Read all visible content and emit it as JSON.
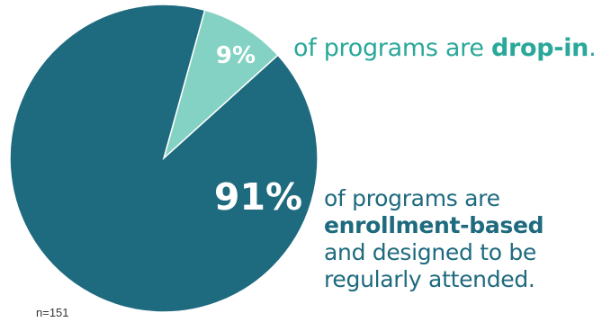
{
  "colors": {
    "enrollment": "#1e6a7e",
    "dropin": "#84d2c3",
    "dropin_text": "#2aa89a",
    "enrollment_text": "#1e6a7e"
  },
  "chart_data": {
    "type": "pie",
    "slices": [
      {
        "label": "drop-in",
        "value": 9,
        "value_label": "9%",
        "color": "#84d2c3"
      },
      {
        "label": "enrollment-based",
        "value": 91,
        "value_label": "91%",
        "color": "#1e6a7e"
      }
    ],
    "annotations": {
      "dropin": {
        "prefix": "of programs are ",
        "bold": "drop-in",
        "suffix": "."
      },
      "enrollment": {
        "line1": "of programs are",
        "line2_bold": "enrollment-based",
        "line3": "and designed to be",
        "line4": "regularly attended."
      }
    },
    "note": "n=151"
  }
}
